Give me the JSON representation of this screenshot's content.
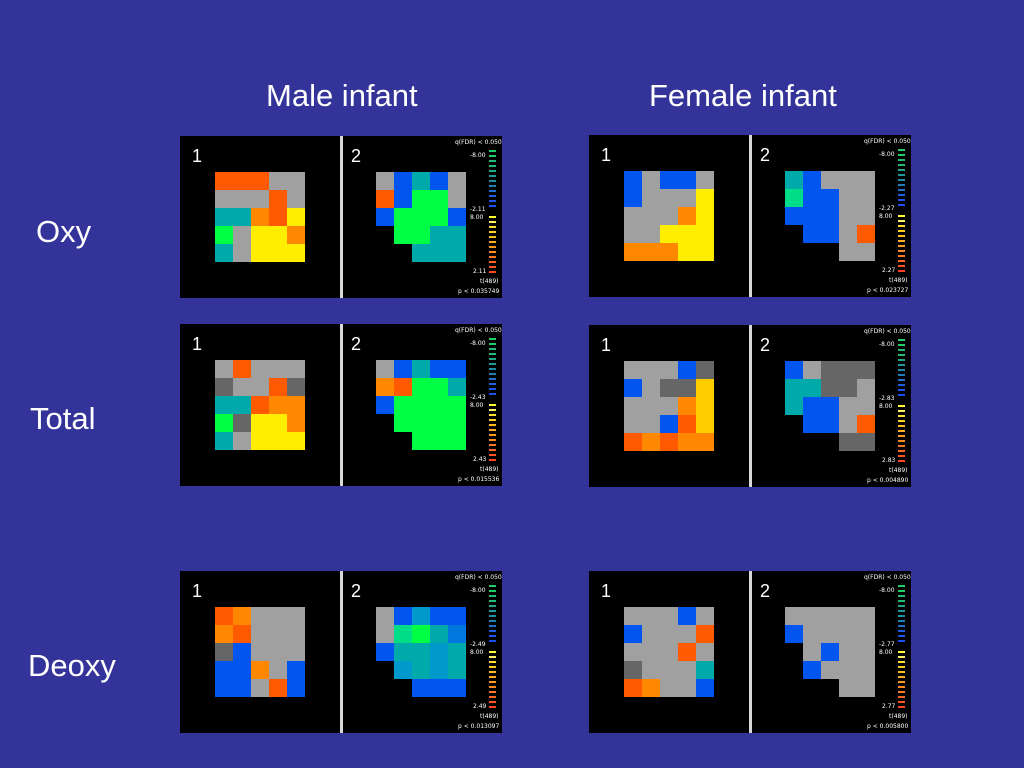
{
  "columns": {
    "male": "Male infant",
    "female": "Female infant"
  },
  "rows": {
    "oxy": "Oxy",
    "total": "Total",
    "deoxy": "Deoxy"
  },
  "hemisphere_labels": [
    "1",
    "2"
  ],
  "colors": {
    "background": "#333399",
    "panel": "#000000",
    "R": "#ff5a00",
    "O": "#ff8800",
    "Y": "#ffee00",
    "y": "#ffcc00",
    "G": "#00ff44",
    "g": "#00dd88",
    "T": "#00aaaa",
    "t": "#0099cc",
    "B": "#0055ee",
    "b": "#0077dd",
    "S": "#a0a0a0",
    "s": "#888888",
    "D": "#666666",
    "K": "#000000"
  },
  "panels": [
    {
      "id": "male-oxy",
      "q_label": "q(FDR) < 0.050",
      "max": "-8.00",
      "neg": "-2.11",
      "pos": "8.00",
      "thr": "2.11",
      "df": "t(489)",
      "p": "p < 0.035749",
      "left": [
        "RRRSS",
        "SSSRS",
        "TTORY",
        "GSYYO",
        "TSYYY"
      ],
      "right": [
        "SBTBS",
        "RBGGS",
        "BGGGB",
        "KGGTT",
        "KKTTT"
      ]
    },
    {
      "id": "female-oxy",
      "q_label": "q(FDR) < 0.050",
      "max": "-8.00",
      "neg": "-2.27",
      "pos": "8.00",
      "thr": "2.27",
      "df": "t(489)",
      "p": "p < 0.023727",
      "left": [
        "BSBBS",
        "BSSSY",
        "SSSOY",
        "SSYYY",
        "OOOYY"
      ],
      "right": [
        "TBSSS",
        "gBBSS",
        "BBBSS",
        "KBBSR",
        "KKKSS"
      ]
    },
    {
      "id": "male-total",
      "q_label": "q(FDR) < 0.050",
      "max": "-8.00",
      "neg": "-2.43",
      "pos": "8.00",
      "thr": "2.43",
      "df": "t(489)",
      "p": "p < 0.015536",
      "left": [
        "SRSSS",
        "DSSRD",
        "TTROO",
        "GDYYO",
        "TSYYY"
      ],
      "right": [
        "SBTBB",
        "ORGGT",
        "BGGGG",
        "KGGGG",
        "KKGGG"
      ]
    },
    {
      "id": "female-total",
      "q_label": "q(FDR) < 0.050",
      "max": "-8.00",
      "neg": "-2.83",
      "pos": "8.00",
      "thr": "2.83",
      "df": "t(489)",
      "p": "p < 0.004890",
      "left": [
        "SSSBD",
        "BSDDy",
        "SSSOy",
        "SSBRy",
        "ROROO"
      ],
      "right": [
        "BSDDD",
        "TTDDS",
        "TBBSS",
        "KBBSR",
        "KKKDD"
      ]
    },
    {
      "id": "male-deoxy",
      "q_label": "q(FDR) < 0.050",
      "max": "-8.00",
      "neg": "-2.49",
      "pos": "8.00",
      "thr": "2.49",
      "df": "t(489)",
      "p": "p < 0.013097",
      "left": [
        "ROSSS",
        "ORSSS",
        "DBSSS",
        "BBOSB",
        "BBSRB"
      ],
      "right": [
        "SBtBB",
        "SgGTb",
        "BTTtT",
        "KtTtT",
        "KKBBB"
      ]
    },
    {
      "id": "female-deoxy",
      "q_label": "q(FDR) < 0.050",
      "max": "-8.00",
      "neg": "-2.77",
      "pos": "8.00",
      "thr": "2.77",
      "df": "t(489)",
      "p": "p < 0.005800",
      "left": [
        "SSSBS",
        "BSSSR",
        "SSSRS",
        "DSSST",
        "ROSSB"
      ],
      "right": [
        "SSSSS",
        "BSSSS",
        "KSBSS",
        "KBSSS",
        "KKKSS"
      ]
    }
  ],
  "colorbar": [
    "#22cc66",
    "#22cc66",
    "#22bb77",
    "#22bb77",
    "#20aa88",
    "#1f9999",
    "#1f8fa8",
    "#1f80b8",
    "#2070d0",
    "#2060e0",
    "#1f55ea",
    "#1d4ff0",
    "#ffff33",
    "#fff066",
    "#ffdd33",
    "#ffcc22",
    "#ffbb22",
    "#ffaa22",
    "#ff9922",
    "#ff8822",
    "#ff7722",
    "#ff6622",
    "#ff5522",
    "#ff4422"
  ]
}
